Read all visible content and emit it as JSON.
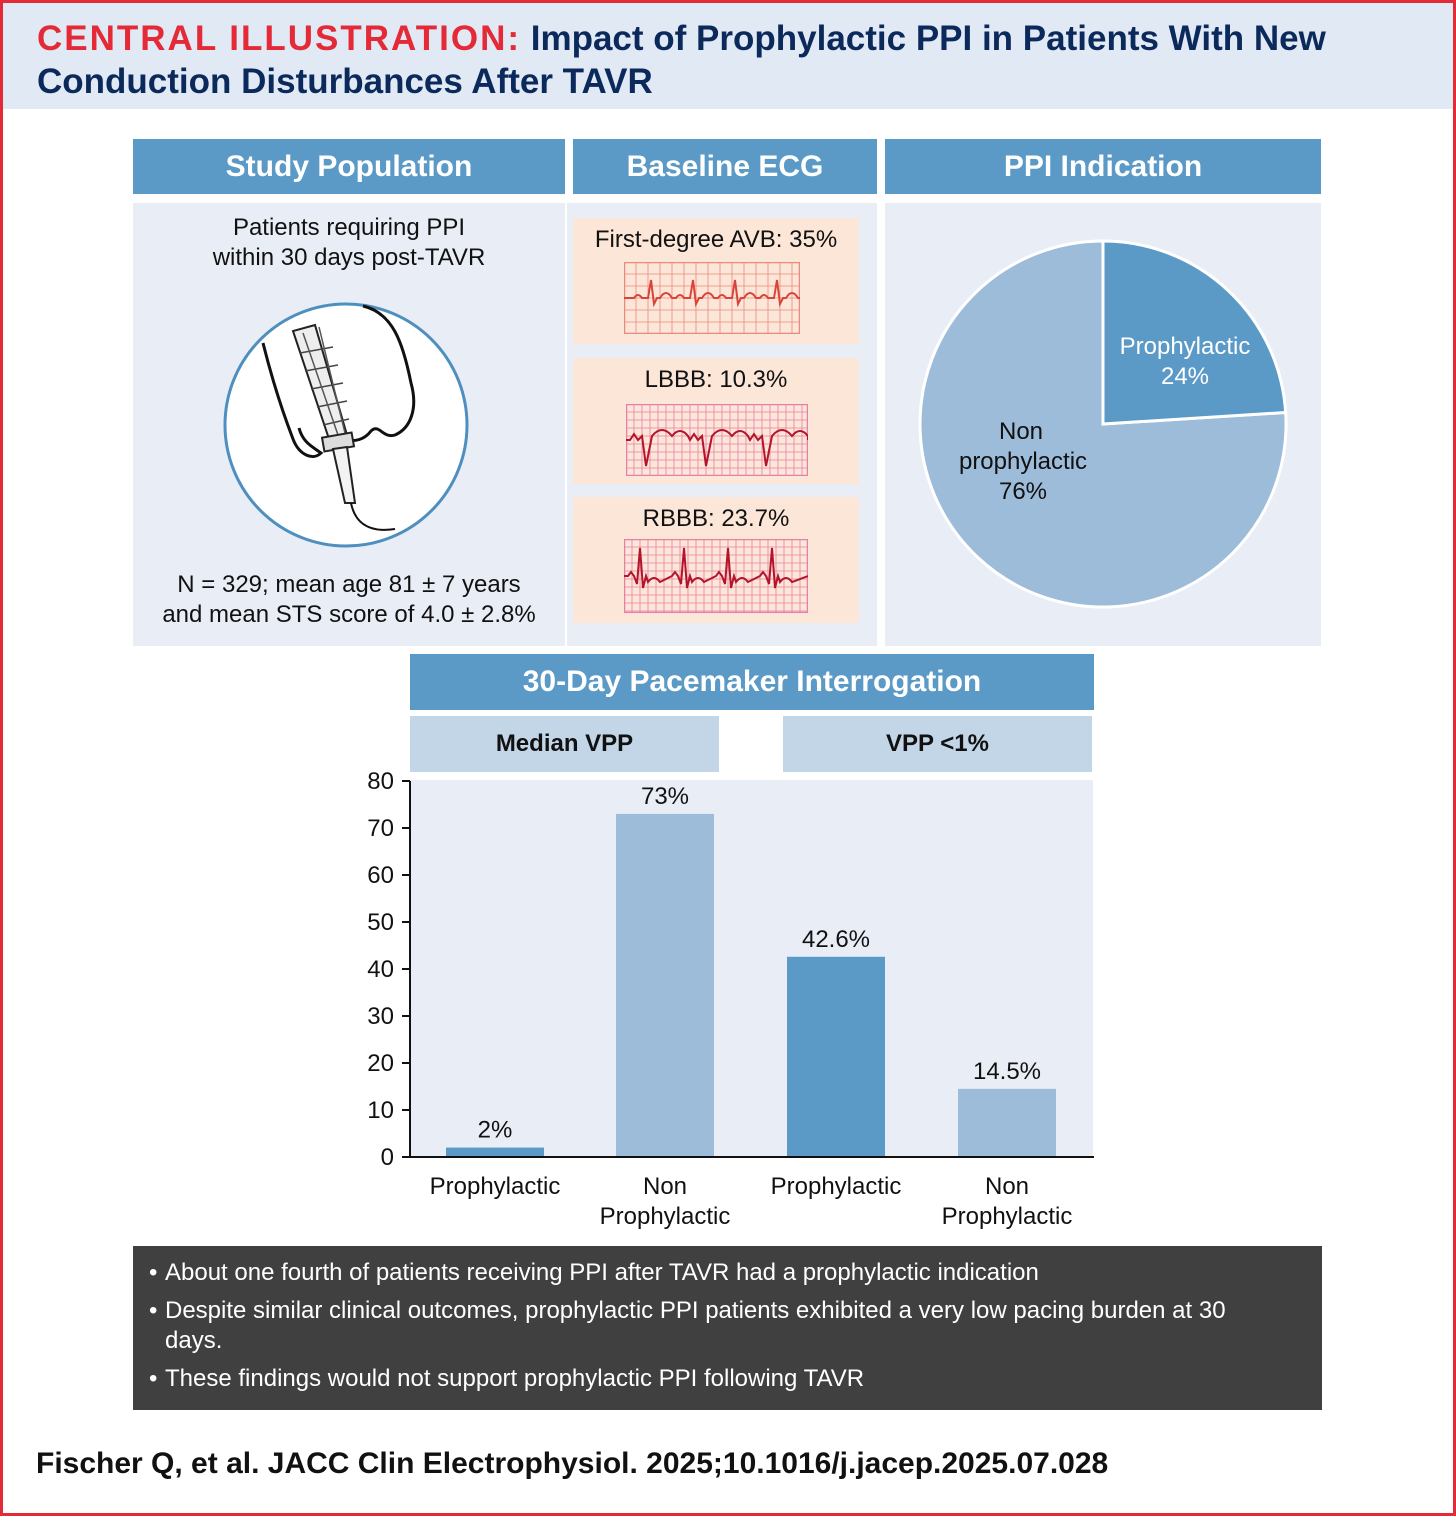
{
  "title": {
    "lead": "CENTRAL ILLUSTRATION:",
    "text": "Impact of Prophylactic PPI in Patients With New Conduction Disturbances After TAVR"
  },
  "study_population": {
    "header": "Study Population",
    "line1": "Patients requiring PPI",
    "line2": "within 30 days post-TAVR",
    "stats_line1": "N = 329; mean age 81 ± 7 years",
    "stats_line2": "and mean STS score of 4.0 ± 2.8%"
  },
  "baseline_ecg": {
    "header": "Baseline ECG",
    "items": [
      {
        "label": "First-degree AVB: 35%",
        "trace_color": "#d9443a"
      },
      {
        "label": "LBBB: 10.3%",
        "trace_color": "#b3142a"
      },
      {
        "label": "RBBB: 23.7%",
        "trace_color": "#b3142a"
      }
    ]
  },
  "ppi_indication": {
    "header": "PPI Indication",
    "slices": [
      {
        "name": "Prophylactic",
        "value": "24%",
        "percent": 24,
        "color": "#5b9ac6"
      },
      {
        "name_line1": "Non",
        "name_line2": "prophylactic",
        "value": "76%",
        "percent": 76,
        "color": "#9dbcd9"
      }
    ]
  },
  "interrogation": {
    "header": "30-Day Pacemaker Interrogation",
    "groups": [
      "Median VPP",
      "VPP <1%"
    ]
  },
  "chart_data": {
    "type": "bar",
    "ylim": [
      0,
      80
    ],
    "yticks": [
      "0",
      "10",
      "20",
      "30",
      "40",
      "50",
      "60",
      "70",
      "80"
    ],
    "bars": [
      {
        "group": "Median VPP",
        "label_line1": "Prophylactic",
        "label_line2": "",
        "value": 2,
        "label": "2%",
        "color": "#5b9ac6"
      },
      {
        "group": "Median VPP",
        "label_line1": "Non",
        "label_line2": "Prophylactic",
        "value": 73,
        "label": "73%",
        "color": "#9dbcd9"
      },
      {
        "group": "VPP <1%",
        "label_line1": "Prophylactic",
        "label_line2": "",
        "value": 42.6,
        "label": "42.6%",
        "color": "#5b9ac6"
      },
      {
        "group": "VPP <1%",
        "label_line1": "Non",
        "label_line2": "Prophylactic",
        "value": 14.5,
        "label": "14.5%",
        "color": "#9dbcd9"
      }
    ]
  },
  "notes": [
    "About one fourth of patients receiving PPI after TAVR had a prophylactic indication",
    "Despite similar clinical outcomes, prophylactic PPI patients exhibited a very low pacing burden at 30 days.",
    "These findings would not support prophylactic PPI following TAVR"
  ],
  "citation": "Fischer Q, et al. JACC Clin Electrophysiol. 2025;10.1016/j.jacep.2025.07.028"
}
